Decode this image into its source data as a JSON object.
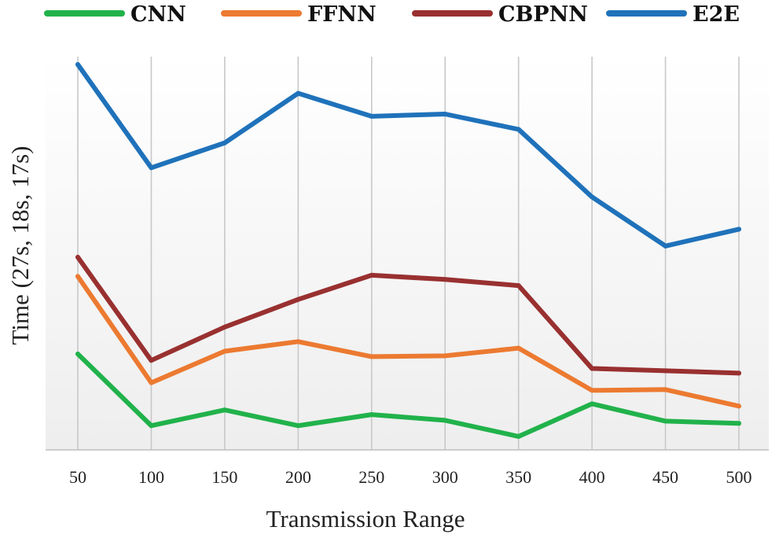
{
  "chart_data": {
    "type": "line",
    "title": "",
    "xlabel": "Transmission Range",
    "ylabel": "Time (27s, 18s, 17s)",
    "categories": [
      "50",
      "100",
      "150",
      "200",
      "250",
      "300",
      "350",
      "400",
      "450",
      "500"
    ],
    "ylim": [
      0,
      100
    ],
    "grid": "vertical",
    "legend_position": "top",
    "series": [
      {
        "name": "CNN",
        "color": "#21b24b",
        "values": [
          24.6,
          5.9,
          10.0,
          5.9,
          8.8,
          7.3,
          3.1,
          11.6,
          7.1,
          6.5
        ]
      },
      {
        "name": "FFNN",
        "color": "#ec7a31",
        "values": [
          44.8,
          17.1,
          25.3,
          27.8,
          23.9,
          24.1,
          26.1,
          15.1,
          15.3,
          11.0
        ]
      },
      {
        "name": "CBPNN",
        "color": "#993030",
        "values": [
          49.8,
          22.9,
          31.6,
          38.8,
          45.1,
          44.0,
          42.4,
          20.8,
          20.2,
          19.6
        ]
      },
      {
        "name": "E2E",
        "color": "#1f72ba",
        "values": [
          100,
          73.1,
          79.6,
          92.5,
          86.5,
          87.1,
          83.1,
          65.5,
          52.7,
          57.1
        ]
      }
    ]
  }
}
